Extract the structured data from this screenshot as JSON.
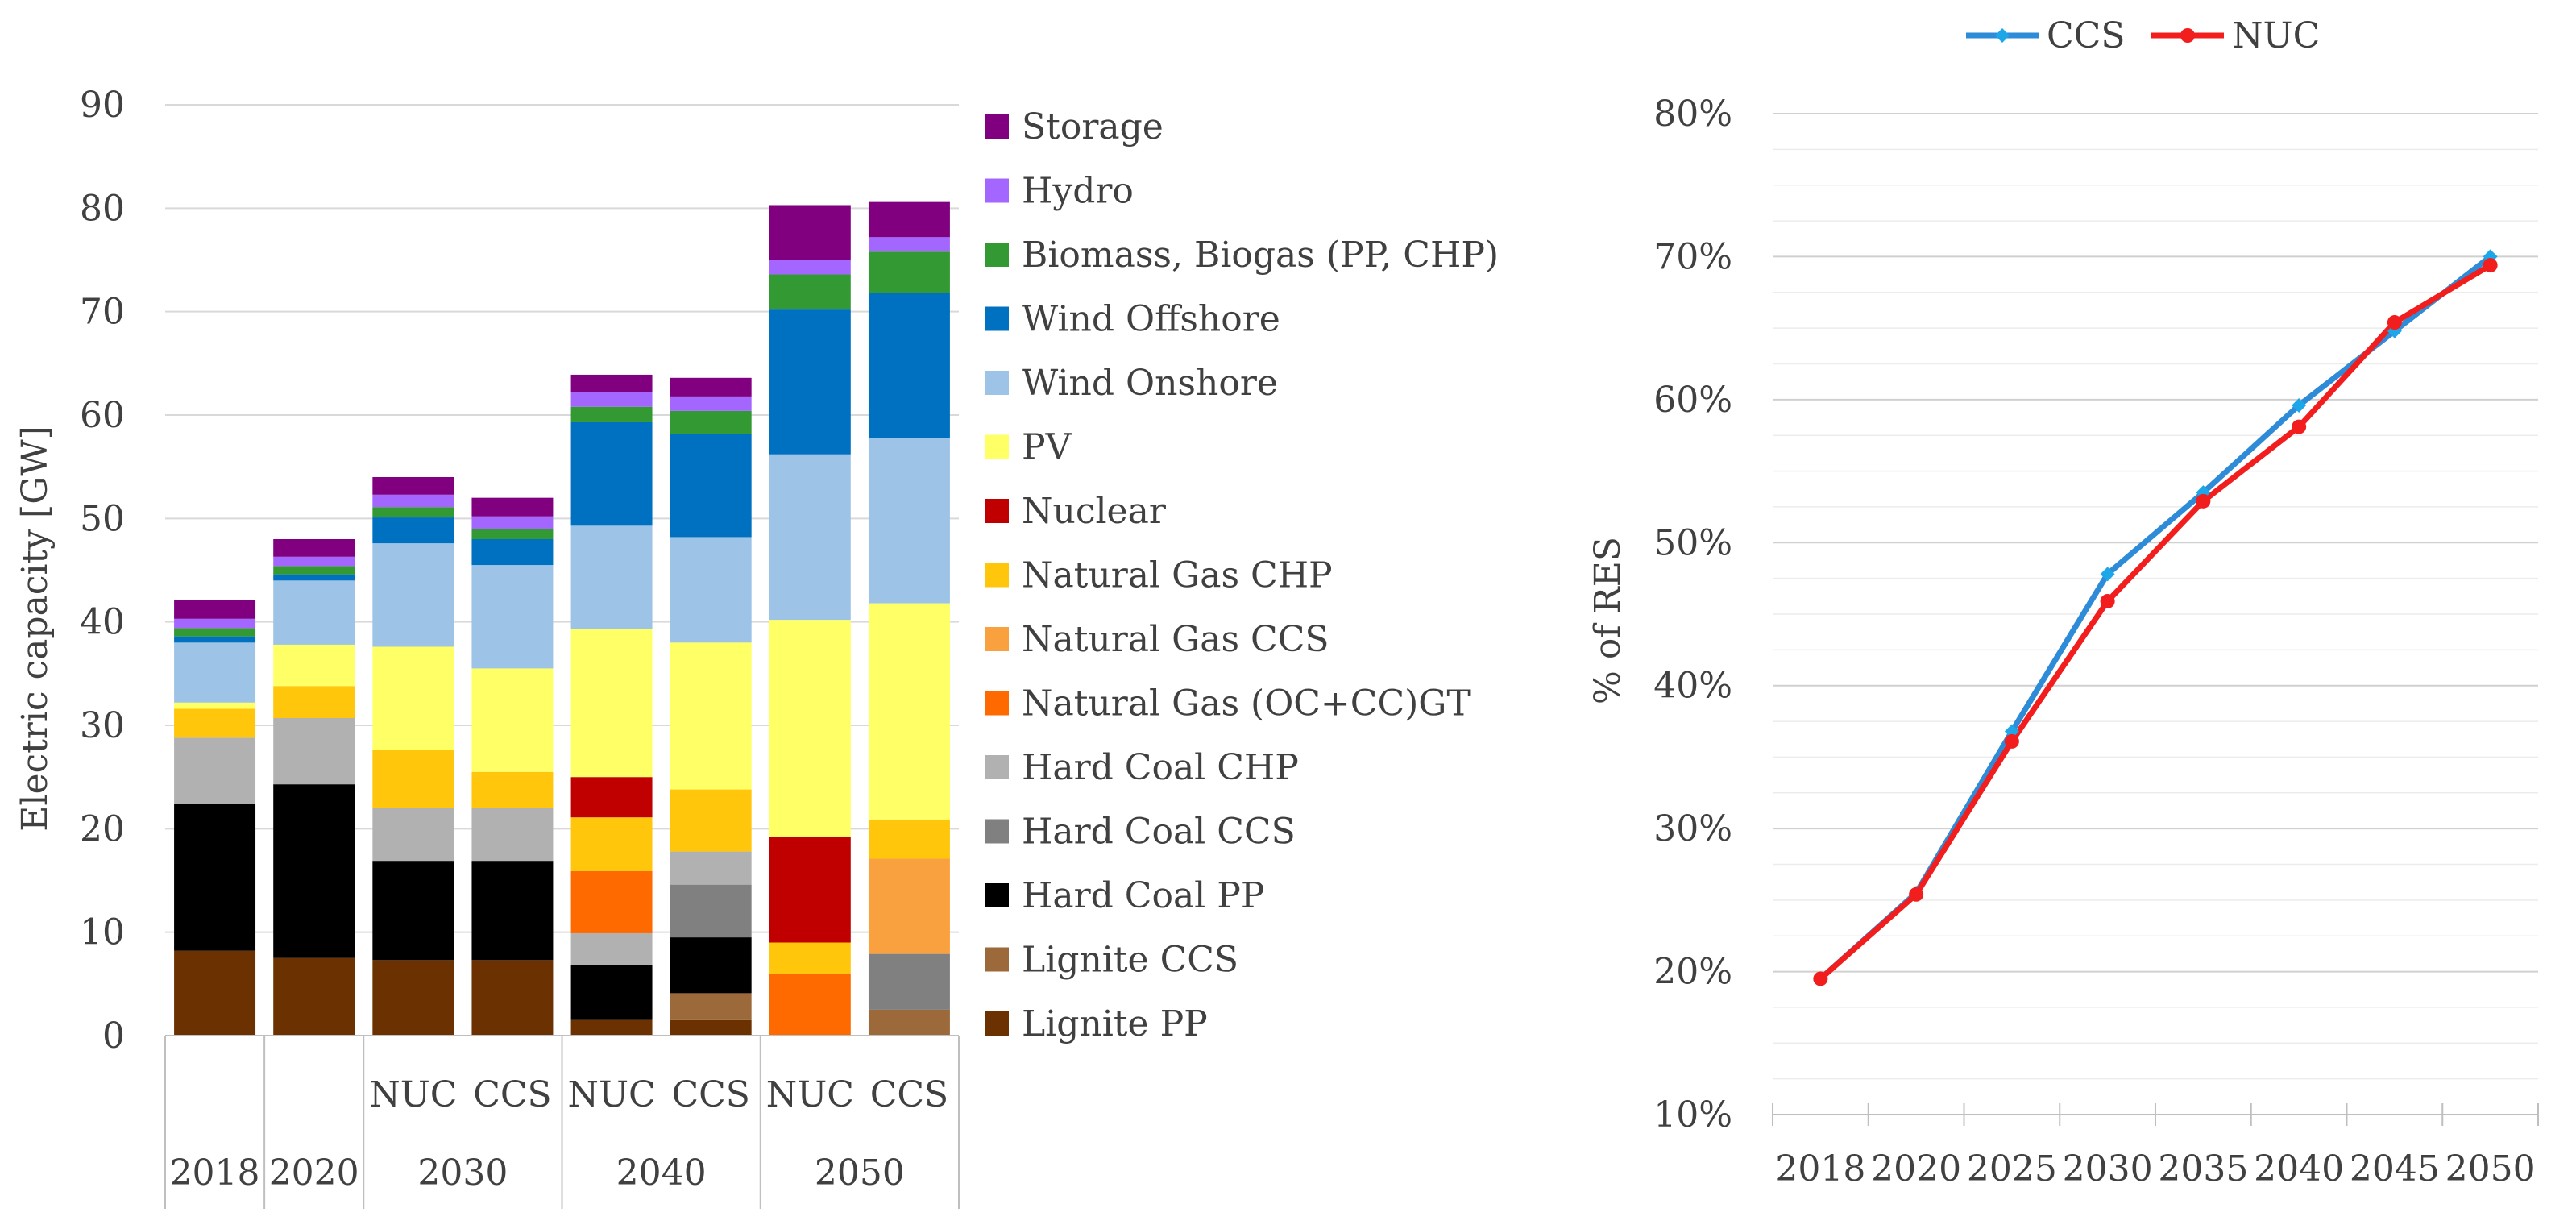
{
  "chart_data": [
    {
      "type": "bar",
      "stacked": true,
      "ylabel": "Electric capacity [GW]",
      "ylim": [
        0,
        90
      ],
      "yticks": [
        "0",
        "10",
        "20",
        "30",
        "40",
        "50",
        "60",
        "70",
        "80",
        "90"
      ],
      "scenario_labels": [
        "",
        "",
        "NUC",
        "CCS",
        "NUC",
        "CCS",
        "NUC",
        "CCS"
      ],
      "year_groups": [
        {
          "label": "2018",
          "bars": [
            0
          ]
        },
        {
          "label": "2020",
          "bars": [
            1
          ]
        },
        {
          "label": "2030",
          "bars": [
            2,
            3
          ]
        },
        {
          "label": "2040",
          "bars": [
            4,
            5
          ]
        },
        {
          "label": "2050",
          "bars": [
            6,
            7
          ]
        }
      ],
      "legend_position": "right",
      "series": [
        {
          "name": "Lignite PP",
          "color": "#6B3100",
          "values": [
            8.2,
            7.5,
            7.3,
            7.3,
            1.5,
            1.5,
            0,
            0
          ]
        },
        {
          "name": "Lignite CCS",
          "color": "#9C6A3A",
          "values": [
            0,
            0,
            0,
            0,
            0,
            2.6,
            0,
            2.5
          ]
        },
        {
          "name": "Hard Coal PP",
          "color": "#000000",
          "values": [
            14.2,
            16.8,
            9.6,
            9.6,
            5.3,
            5.4,
            0,
            0
          ]
        },
        {
          "name": "Hard Coal CCS",
          "color": "#808080",
          "values": [
            0,
            0,
            0,
            0,
            0,
            5.1,
            0,
            5.4
          ]
        },
        {
          "name": "Hard Coal CHP",
          "color": "#B1B1B1",
          "values": [
            6.4,
            6.4,
            5.1,
            5.1,
            3.1,
            3.2,
            0,
            0
          ]
        },
        {
          "name": "Natural Gas (OC+CC)GT",
          "color": "#FF6A00",
          "values": [
            0,
            0,
            0,
            0,
            6.0,
            0,
            6.0,
            0
          ]
        },
        {
          "name": "Natural Gas CCS",
          "color": "#F9A03F",
          "values": [
            0,
            0,
            0,
            0,
            0,
            0,
            0,
            9.2
          ]
        },
        {
          "name": "Natural Gas CHP",
          "color": "#FFC60B",
          "values": [
            2.8,
            3.1,
            5.6,
            3.5,
            5.2,
            6.0,
            3.0,
            3.8
          ]
        },
        {
          "name": "Nuclear",
          "color": "#C00000",
          "values": [
            0,
            0,
            0,
            0,
            3.9,
            0,
            10.2,
            0
          ]
        },
        {
          "name": "PV",
          "color": "#FFFF66",
          "values": [
            0.6,
            4.0,
            10.0,
            10.0,
            14.3,
            14.2,
            21.0,
            20.9
          ]
        },
        {
          "name": "Wind Onshore",
          "color": "#9DC3E6",
          "values": [
            5.8,
            6.2,
            10.0,
            10.0,
            10.0,
            10.2,
            16.0,
            16.0
          ]
        },
        {
          "name": "Wind Offshore",
          "color": "#0070C0",
          "values": [
            0.6,
            0.6,
            2.5,
            2.5,
            10.0,
            10.0,
            14.0,
            14.0
          ]
        },
        {
          "name": "Biomass, Biogas (PP, CHP)",
          "color": "#339933",
          "values": [
            0.8,
            0.8,
            1.0,
            1.0,
            1.5,
            2.2,
            3.4,
            4.0
          ]
        },
        {
          "name": "Hydro",
          "color": "#A366FF",
          "values": [
            0.9,
            0.9,
            1.2,
            1.2,
            1.4,
            1.4,
            1.4,
            1.4
          ]
        },
        {
          "name": "Storage",
          "color": "#800080",
          "values": [
            1.8,
            1.7,
            1.7,
            1.8,
            1.7,
            1.8,
            5.3,
            3.4
          ]
        }
      ]
    },
    {
      "type": "line",
      "ylabel": "% of RES",
      "ylim": [
        10,
        80
      ],
      "yticks": [
        "10%",
        "20%",
        "30%",
        "40%",
        "50%",
        "60%",
        "70%",
        "80%"
      ],
      "x": [
        "2018",
        "2020",
        "2025",
        "2030",
        "2035",
        "2040",
        "2045",
        "2050"
      ],
      "legend_position": "top",
      "series": [
        {
          "name": "CCS",
          "color": "#2E8BD8",
          "marker_color": "#1EA7E8",
          "values": [
            19.5,
            25.5,
            36.8,
            47.8,
            53.5,
            59.6,
            64.8,
            70.0
          ]
        },
        {
          "name": "NUC",
          "color": "#F21D1D",
          "marker_color": "#F21D1D",
          "values": [
            19.5,
            25.4,
            36.1,
            45.9,
            52.9,
            58.1,
            65.4,
            69.4
          ]
        }
      ]
    }
  ]
}
